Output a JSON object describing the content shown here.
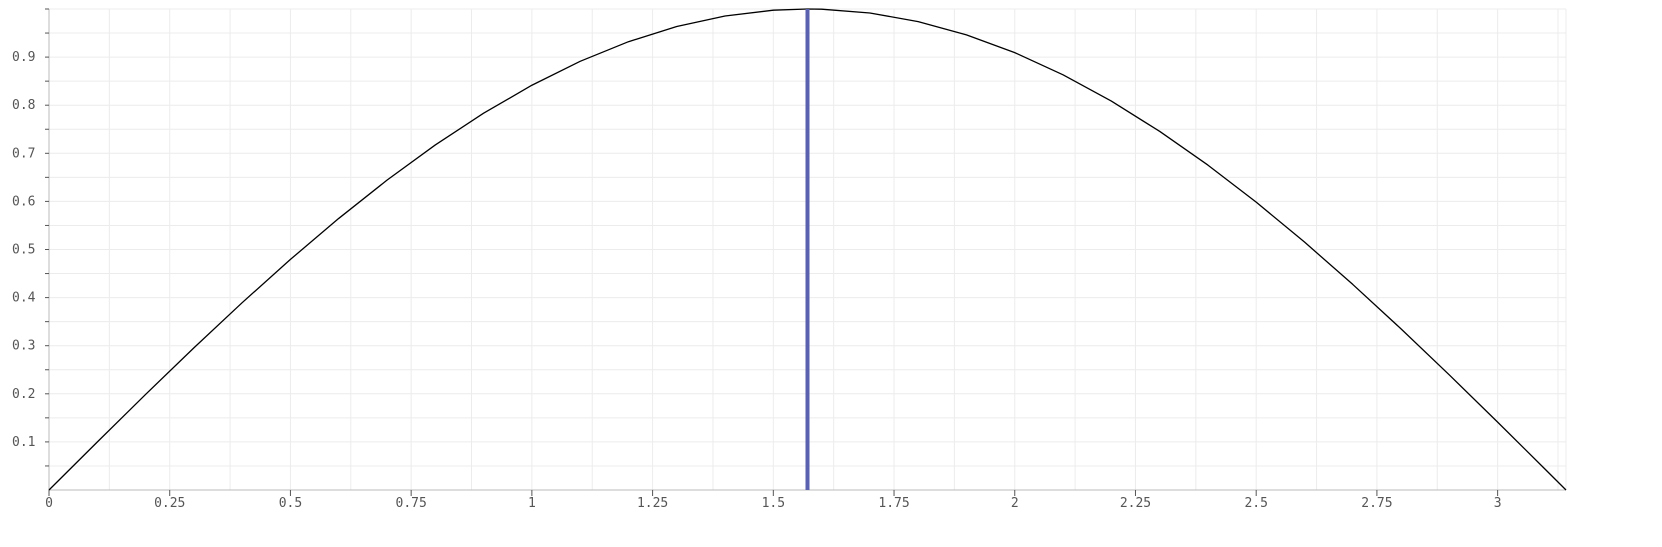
{
  "chart_data": {
    "type": "line",
    "title": "",
    "xlabel": "",
    "ylabel": "",
    "xlim": [
      0,
      3.14159
    ],
    "ylim": [
      0,
      1.0
    ],
    "grid": true,
    "x_ticks": [
      0,
      0.25,
      0.5,
      0.75,
      1,
      1.25,
      1.5,
      1.75,
      2,
      2.25,
      2.5,
      2.75,
      3
    ],
    "x_tick_labels": [
      "0",
      "0.25",
      "0.5",
      "0.75",
      "1",
      "1.25",
      "1.5",
      "1.75",
      "2",
      "2.25",
      "2.5",
      "2.75",
      "3"
    ],
    "y_ticks": [
      0.1,
      0.2,
      0.3,
      0.4,
      0.5,
      0.6,
      0.7,
      0.8,
      0.9
    ],
    "y_tick_labels": [
      "0.1",
      "0.2",
      "0.3",
      "0.4",
      "0.5",
      "0.6",
      "0.7",
      "0.8",
      "0.9"
    ],
    "series": [
      {
        "color": "#000000",
        "x": [
          0,
          0.1,
          0.2,
          0.3,
          0.4,
          0.5,
          0.6,
          0.7,
          0.8,
          0.9,
          1.0,
          1.1,
          1.2,
          1.3,
          1.4,
          1.5,
          1.5708,
          1.6,
          1.7,
          1.8,
          1.9,
          2.0,
          2.1,
          2.2,
          2.3,
          2.4,
          2.5,
          2.6,
          2.7,
          2.8,
          2.9,
          3.0,
          3.1,
          3.14159
        ],
        "y": [
          0,
          0.0998,
          0.1987,
          0.2955,
          0.3894,
          0.4794,
          0.5646,
          0.6442,
          0.7174,
          0.7833,
          0.8415,
          0.8912,
          0.932,
          0.9636,
          0.9854,
          0.9975,
          1.0,
          0.9996,
          0.9917,
          0.9738,
          0.9463,
          0.9093,
          0.8632,
          0.8085,
          0.7457,
          0.6755,
          0.5985,
          0.5155,
          0.4274,
          0.335,
          0.2392,
          0.1411,
          0.0416,
          0
        ]
      }
    ],
    "vertical_marker": {
      "x": 1.5708,
      "color": "#5a62b0"
    }
  }
}
